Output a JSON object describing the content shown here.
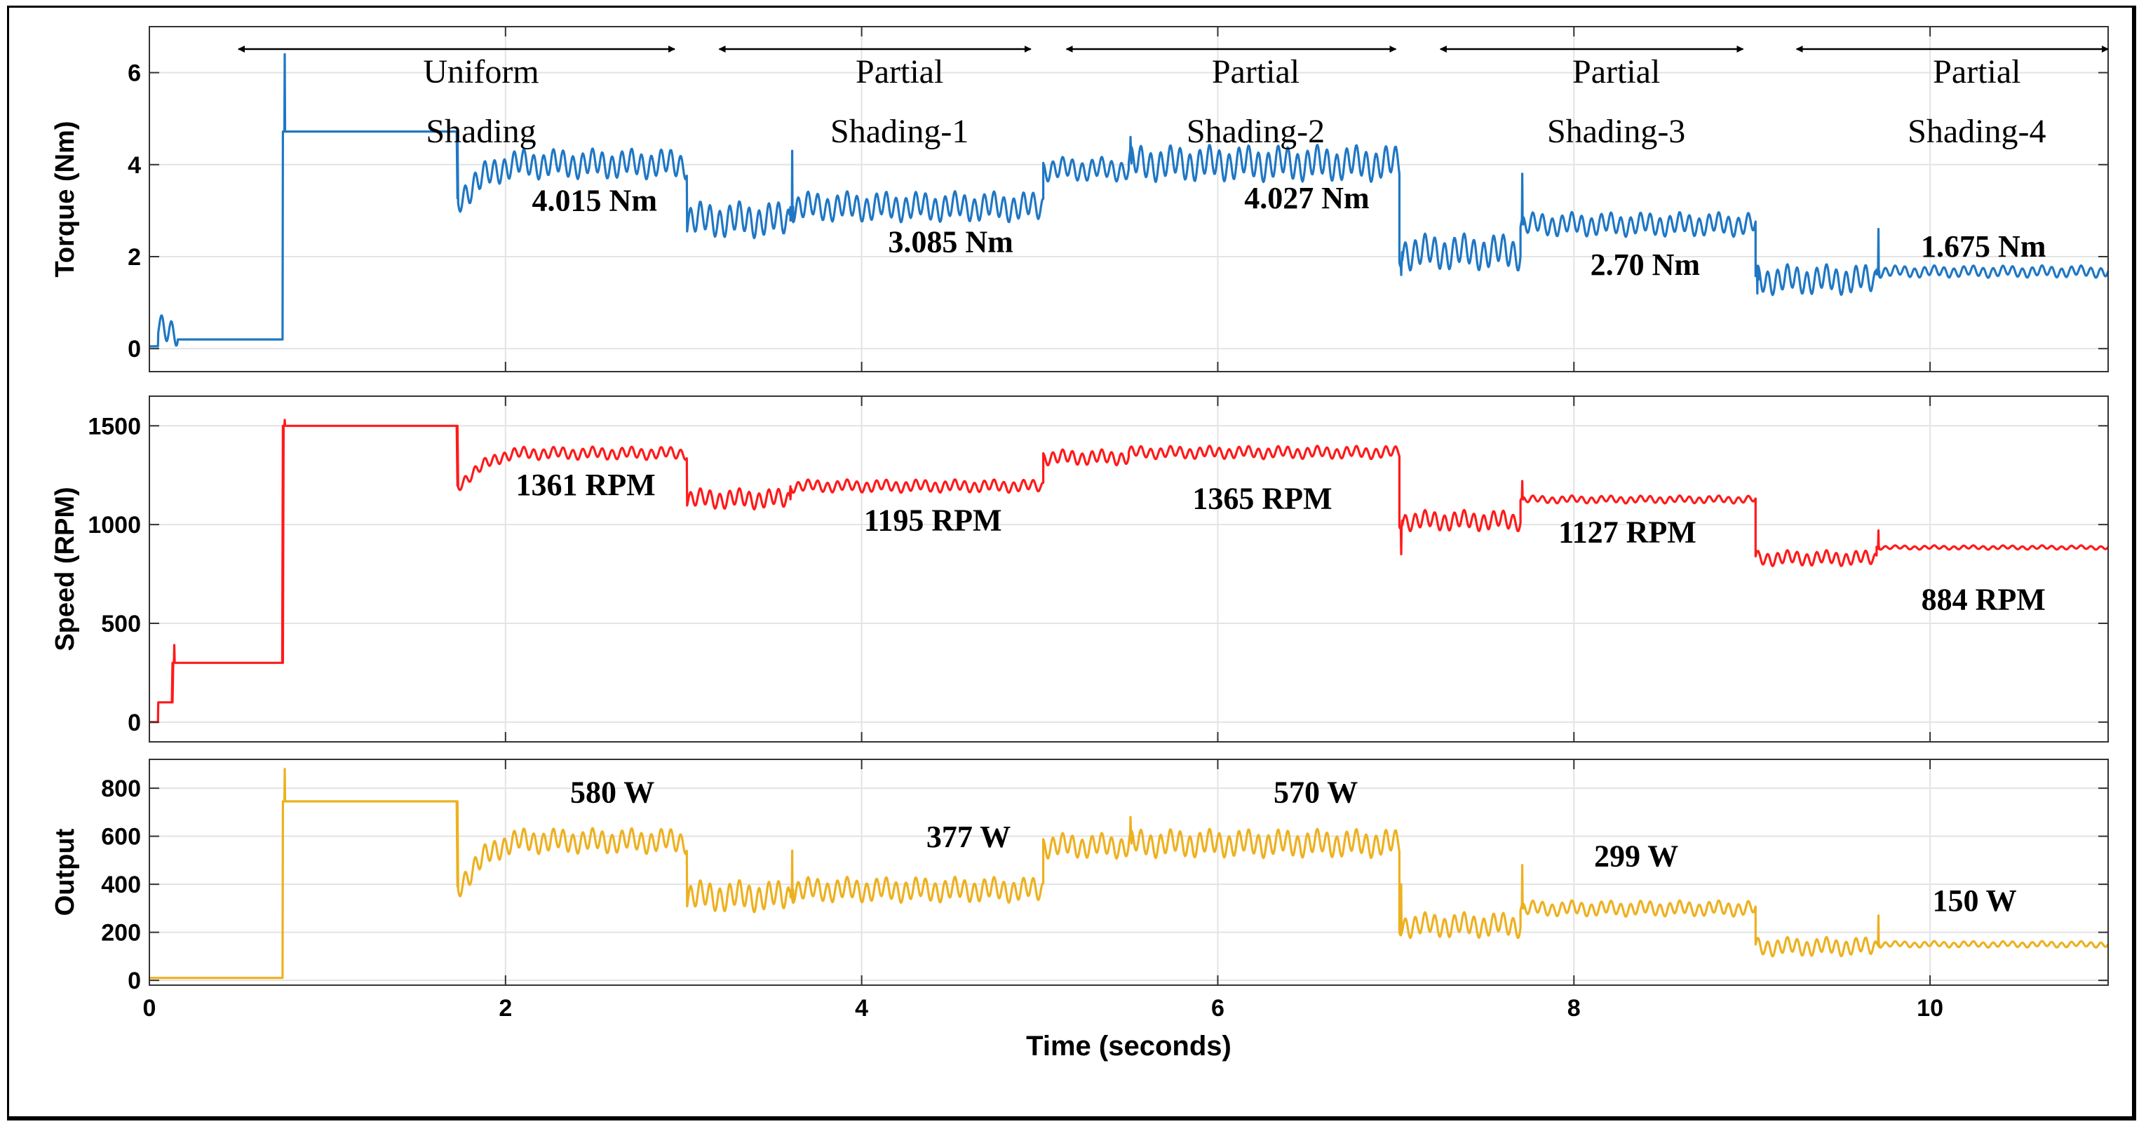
{
  "chart_data": [
    {
      "type": "line",
      "name": "torque",
      "ylabel": "Torque (Nm)",
      "ylim": [
        -0.5,
        7
      ],
      "yticks": [
        0,
        2,
        4,
        6
      ],
      "color": "#1f77c4",
      "grid": true,
      "segments": [
        {
          "t0": 0,
          "t1": 0.05,
          "v": 0.05
        },
        {
          "t0": 0.05,
          "t1": 0.16,
          "v": 0.4,
          "ripple": 0.25
        },
        {
          "t0": 0.16,
          "t1": 0.75,
          "v": 0.2
        },
        {
          "t0": 0.75,
          "t1": 1.73,
          "v": 4.72,
          "spike": 6.4
        },
        {
          "t0": 1.73,
          "t1": 3.02,
          "v": 4.015,
          "start": 3.2,
          "ripple": 0.25
        },
        {
          "t0": 3.02,
          "t1": 3.6,
          "v": 2.8,
          "ripple": 0.3
        },
        {
          "t0": 3.6,
          "t1": 5.02,
          "v": 3.085,
          "spike": 4.3,
          "ripple": 0.25
        },
        {
          "t0": 5.02,
          "t1": 5.5,
          "v": 3.9,
          "ripple": 0.2
        },
        {
          "t0": 5.5,
          "t1": 7.02,
          "v": 4.027,
          "spike": 4.6,
          "ripple": 0.3
        },
        {
          "t0": 7.02,
          "t1": 7.7,
          "v": 2.1,
          "spike": 1.6,
          "ripple": 0.3
        },
        {
          "t0": 7.7,
          "t1": 9.02,
          "v": 2.7,
          "spike": 3.8,
          "ripple": 0.2
        },
        {
          "t0": 9.02,
          "t1": 9.7,
          "v": 1.5,
          "spike": 1.2,
          "ripple": 0.25
        },
        {
          "t0": 9.7,
          "t1": 11.0,
          "v": 1.675,
          "spike": 2.6,
          "ripple": 0.1
        }
      ],
      "labels": [
        {
          "text": "4.015 Nm",
          "t": 2.5,
          "v": 3.0
        },
        {
          "text": "3.085 Nm",
          "t": 4.5,
          "v": 2.1
        },
        {
          "text": "4.027 Nm",
          "t": 6.5,
          "v": 3.05
        },
        {
          "text": "2.70 Nm",
          "t": 8.4,
          "v": 1.6
        },
        {
          "text": "1.675 Nm",
          "t": 10.3,
          "v": 2.0
        }
      ]
    },
    {
      "type": "line",
      "name": "speed",
      "ylabel": "Speed (RPM)",
      "ylim": [
        -100,
        1650
      ],
      "yticks": [
        0,
        500,
        1000,
        1500
      ],
      "color": "#ff1a1a",
      "grid": true,
      "segments": [
        {
          "t0": 0,
          "t1": 0.05,
          "v": 0
        },
        {
          "t0": 0.05,
          "t1": 0.13,
          "v": 100
        },
        {
          "t0": 0.13,
          "t1": 0.75,
          "v": 300,
          "spike": 390
        },
        {
          "t0": 0.75,
          "t1": 1.73,
          "v": 1500,
          "spike": 1530
        },
        {
          "t0": 1.73,
          "t1": 3.02,
          "v": 1361,
          "start": 1190,
          "ripple": 25
        },
        {
          "t0": 3.02,
          "t1": 3.6,
          "v": 1130,
          "ripple": 40
        },
        {
          "t0": 3.6,
          "t1": 5.02,
          "v": 1195,
          "ripple": 25
        },
        {
          "t0": 5.02,
          "t1": 5.5,
          "v": 1340,
          "ripple": 30
        },
        {
          "t0": 5.5,
          "t1": 7.02,
          "v": 1365,
          "ripple": 25
        },
        {
          "t0": 7.02,
          "t1": 7.7,
          "v": 1020,
          "spike": 850,
          "ripple": 40
        },
        {
          "t0": 7.7,
          "t1": 9.02,
          "v": 1127,
          "spike": 1220,
          "ripple": 15
        },
        {
          "t0": 9.02,
          "t1": 9.7,
          "v": 830,
          "ripple": 30
        },
        {
          "t0": 9.7,
          "t1": 11.0,
          "v": 884,
          "spike": 970,
          "ripple": 8
        }
      ],
      "labels": [
        {
          "text": "1361 RPM",
          "t": 2.45,
          "v": 1150
        },
        {
          "text": "1195 RPM",
          "t": 4.4,
          "v": 970
        },
        {
          "text": "1365 RPM",
          "t": 6.25,
          "v": 1080
        },
        {
          "text": "1127 RPM",
          "t": 8.3,
          "v": 910
        },
        {
          "text": "884 RPM",
          "t": 10.3,
          "v": 570
        }
      ]
    },
    {
      "type": "line",
      "name": "output",
      "ylabel": "Output",
      "ylim": [
        -20,
        920
      ],
      "yticks": [
        0,
        200,
        400,
        600,
        800
      ],
      "color": "#edb120",
      "grid": true,
      "segments": [
        {
          "t0": 0,
          "t1": 0.75,
          "v": 10
        },
        {
          "t0": 0.75,
          "t1": 1.73,
          "v": 745,
          "spike": 880
        },
        {
          "t0": 1.73,
          "t1": 3.02,
          "v": 580,
          "start": 380,
          "ripple": 40
        },
        {
          "t0": 3.02,
          "t1": 3.6,
          "v": 350,
          "ripple": 50
        },
        {
          "t0": 3.6,
          "t1": 5.02,
          "v": 377,
          "spike": 540,
          "ripple": 40
        },
        {
          "t0": 5.02,
          "t1": 5.5,
          "v": 560,
          "ripple": 40
        },
        {
          "t0": 5.5,
          "t1": 7.02,
          "v": 570,
          "spike": 680,
          "ripple": 45
        },
        {
          "t0": 7.02,
          "t1": 7.7,
          "v": 230,
          "spike": 400,
          "ripple": 40
        },
        {
          "t0": 7.7,
          "t1": 9.02,
          "v": 299,
          "spike": 480,
          "ripple": 25
        },
        {
          "t0": 9.02,
          "t1": 9.7,
          "v": 140,
          "ripple": 30
        },
        {
          "t0": 9.7,
          "t1": 11.0,
          "v": 150,
          "spike": 270,
          "ripple": 10
        }
      ],
      "labels": [
        {
          "text": "580 W",
          "t": 2.6,
          "v": 740
        },
        {
          "text": "377 W",
          "t": 4.6,
          "v": 555
        },
        {
          "text": "570 W",
          "t": 6.55,
          "v": 740
        },
        {
          "text": "299 W",
          "t": 8.35,
          "v": 475
        },
        {
          "text": "150 W",
          "t": 10.25,
          "v": 290
        }
      ]
    }
  ],
  "xaxis": {
    "xlabel": "Time (seconds)",
    "xlim": [
      0,
      11
    ],
    "xticks": [
      0,
      2,
      4,
      6,
      8,
      10
    ]
  },
  "regions": [
    {
      "line1": "Uniform",
      "line2": "Shading",
      "t0": 0.5,
      "t1": 2.95
    },
    {
      "line1": "Partial",
      "line2": "Shading-1",
      "t0": 3.2,
      "t1": 4.95
    },
    {
      "line1": "Partial",
      "line2": "Shading-2",
      "t0": 5.15,
      "t1": 7.0
    },
    {
      "line1": "Partial",
      "line2": "Shading-3",
      "t0": 7.25,
      "t1": 8.95
    },
    {
      "line1": "Partial",
      "line2": "Shading-4",
      "t0": 9.25,
      "t1": 11.0
    }
  ]
}
